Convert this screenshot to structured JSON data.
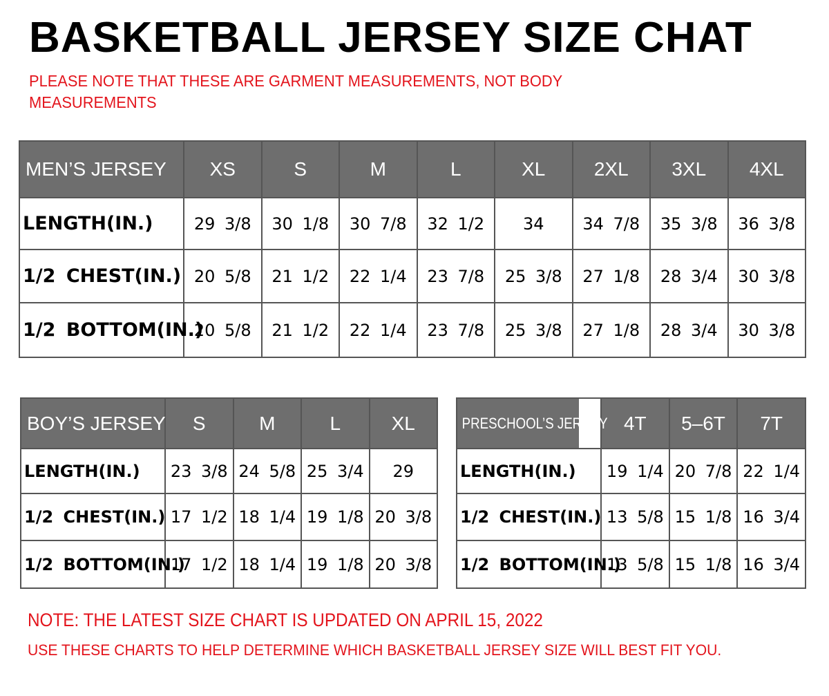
{
  "title": "BASKETBALL JERSEY SIZE CHAT",
  "note": "PLEASE NOTE THAT THESE ARE GARMENT MEASUREMENTS, NOT BODY MEASUREMENTS",
  "colors": {
    "header_bg": "#6e6e6e",
    "red": "#e3141c"
  },
  "tables": {
    "men": {
      "header": "MEN’S JERSEY",
      "sizes": [
        "XS",
        "S",
        "M",
        "L",
        "XL",
        "2XL",
        "3XL",
        "4XL"
      ],
      "rows": [
        {
          "label": "LENGTH(IN.)",
          "values": [
            "29 3/8",
            "30 1/8",
            "30 7/8",
            "32 1/2",
            "34",
            "34 7/8",
            "35 3/8",
            "36 3/8"
          ]
        },
        {
          "label": "1/2 CHEST(IN.)",
          "values": [
            "20 5/8",
            "21 1/2",
            "22 1/4",
            "23 7/8",
            "25 3/8",
            "27 1/8",
            "28 3/4",
            "30 3/8"
          ]
        },
        {
          "label": "1/2 BOTTOM(IN.)",
          "values": [
            "20 5/8",
            "21 1/2",
            "22 1/4",
            "23 7/8",
            "25 3/8",
            "27 1/8",
            "28 3/4",
            "30 3/8"
          ]
        }
      ]
    },
    "boys": {
      "header": "BOY’S JERSEY",
      "sizes": [
        "S",
        "M",
        "L",
        "XL"
      ],
      "rows": [
        {
          "label": "LENGTH(IN.)",
          "values": [
            "23 3/8",
            "24 5/8",
            "25 3/4",
            "29"
          ]
        },
        {
          "label": "1/2 CHEST(IN.)",
          "values": [
            "17 1/2",
            "18 1/4",
            "19 1/8",
            "20 3/8"
          ]
        },
        {
          "label": "1/2 BOTTOM(IN.)",
          "values": [
            "17 1/2",
            "18 1/4",
            "19 1/8",
            "20 3/8"
          ]
        }
      ]
    },
    "pre": {
      "header": "PRESCHOOL’S JERSEY",
      "sizes": [
        "4T",
        "5–6T",
        "7T"
      ],
      "rows": [
        {
          "label": "LENGTH(IN.)",
          "values": [
            "19 1/4",
            "20 7/8",
            "22 1/4"
          ]
        },
        {
          "label": "1/2 CHEST(IN.)",
          "values": [
            "13 5/8",
            "15 1/8",
            "16 3/4"
          ]
        },
        {
          "label": "1/2 BOTTOM(IN.)",
          "values": [
            "13 5/8",
            "15 1/8",
            "16 3/4"
          ]
        }
      ]
    }
  },
  "footer": {
    "updated": "NOTE: THE LATEST SIZE CHART IS UPDATED ON APRIL 15, 2022",
    "usage": "USE THESE CHARTS TO HELP DETERMINE WHICH  BASKETBALL JERSEY  SIZE WILL BEST FIT YOU."
  }
}
